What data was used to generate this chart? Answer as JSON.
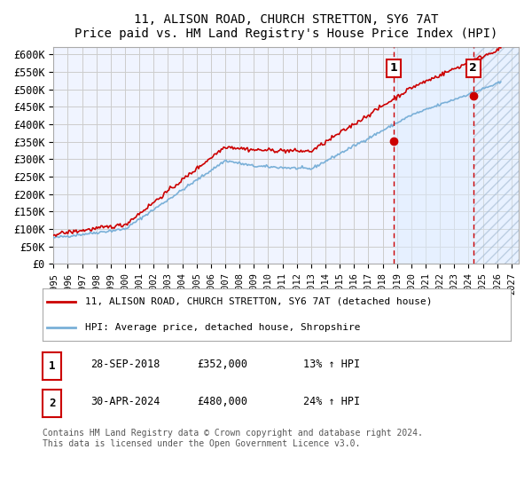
{
  "title": "11, ALISON ROAD, CHURCH STRETTON, SY6 7AT",
  "subtitle": "Price paid vs. HM Land Registry's House Price Index (HPI)",
  "ylabel": "",
  "ylim": [
    0,
    620000
  ],
  "yticks": [
    0,
    50000,
    100000,
    150000,
    200000,
    250000,
    300000,
    350000,
    400000,
    450000,
    500000,
    550000,
    600000
  ],
  "ytick_labels": [
    "£0",
    "£50K",
    "£100K",
    "£150K",
    "£200K",
    "£250K",
    "£300K",
    "£350K",
    "£400K",
    "£450K",
    "£500K",
    "£550K",
    "£600K"
  ],
  "xlim_start": 1995.0,
  "xlim_end": 2027.5,
  "xticks": [
    1995,
    1996,
    1997,
    1998,
    1999,
    2000,
    2001,
    2002,
    2003,
    2004,
    2005,
    2006,
    2007,
    2008,
    2009,
    2010,
    2011,
    2012,
    2013,
    2014,
    2015,
    2016,
    2017,
    2018,
    2019,
    2020,
    2021,
    2022,
    2023,
    2024,
    2025,
    2026,
    2027
  ],
  "bg_color": "#f0f4ff",
  "hatch_color": "#c8d8f0",
  "grid_color": "#cccccc",
  "sale1_x": 2018.75,
  "sale1_y": 352000,
  "sale2_x": 2024.33,
  "sale2_y": 480000,
  "marker_color": "#cc0000",
  "line_color_red": "#cc0000",
  "line_color_blue": "#7ab0d8",
  "legend_label_red": "11, ALISON ROAD, CHURCH STRETTON, SY6 7AT (detached house)",
  "legend_label_blue": "HPI: Average price, detached house, Shropshire",
  "annot1_label": "1",
  "annot1_date": "28-SEP-2018",
  "annot1_price": "£352,000",
  "annot1_hpi": "13% ↑ HPI",
  "annot2_label": "2",
  "annot2_date": "30-APR-2024",
  "annot2_price": "£480,000",
  "annot2_hpi": "24% ↑ HPI",
  "footer": "Contains HM Land Registry data © Crown copyright and database right 2024.\nThis data is licensed under the Open Government Licence v3.0."
}
